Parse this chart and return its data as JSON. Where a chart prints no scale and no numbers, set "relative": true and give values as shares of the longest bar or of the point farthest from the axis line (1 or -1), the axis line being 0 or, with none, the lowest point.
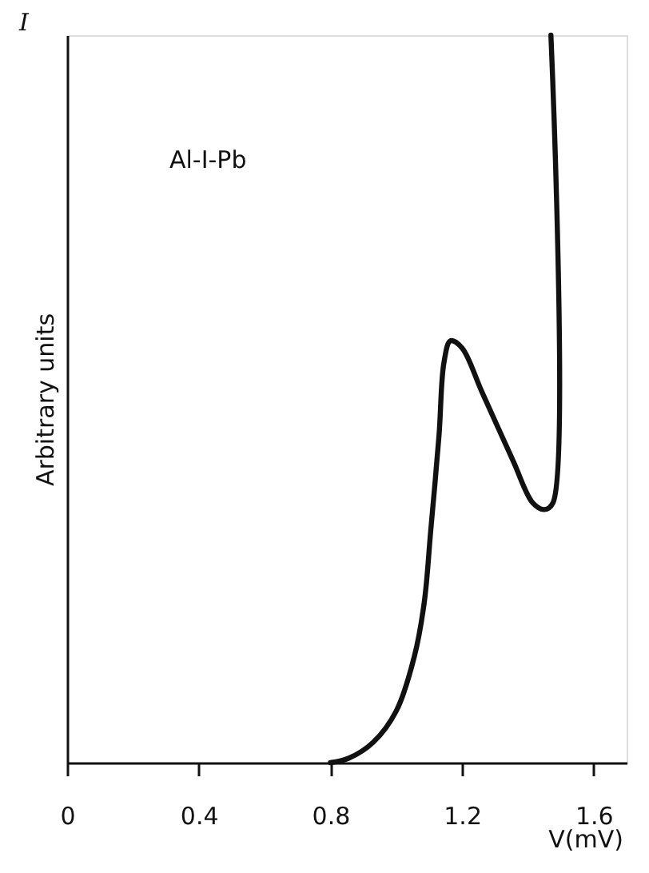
{
  "chart_data": {
    "type": "line",
    "relative": true,
    "ylabel": "Arbitrary units",
    "xlabel": "V(mV)",
    "annotations": [
      "I",
      "Al-I-Pb"
    ],
    "xlim": [
      0,
      1.7
    ],
    "xticks": [
      0,
      0.4,
      0.8,
      1.2,
      1.6
    ],
    "grid": false,
    "line_style": "solid",
    "marker": "none",
    "series": [
      {
        "color": "#111111",
        "x": [
          0.8,
          0.855,
          0.93,
          1.0,
          1.055,
          1.085,
          1.105,
          1.13,
          1.145,
          1.165,
          1.2,
          1.26,
          1.355,
          1.415,
          1.45,
          1.476,
          1.47
        ],
        "values": [
          0,
          0.006,
          0.028,
          0.071,
          0.146,
          0.22,
          0.32,
          0.45,
          0.55,
          0.58,
          0.57,
          0.51,
          0.415,
          0.357,
          0.348,
          0.357,
          1
        ]
      }
    ]
  }
}
